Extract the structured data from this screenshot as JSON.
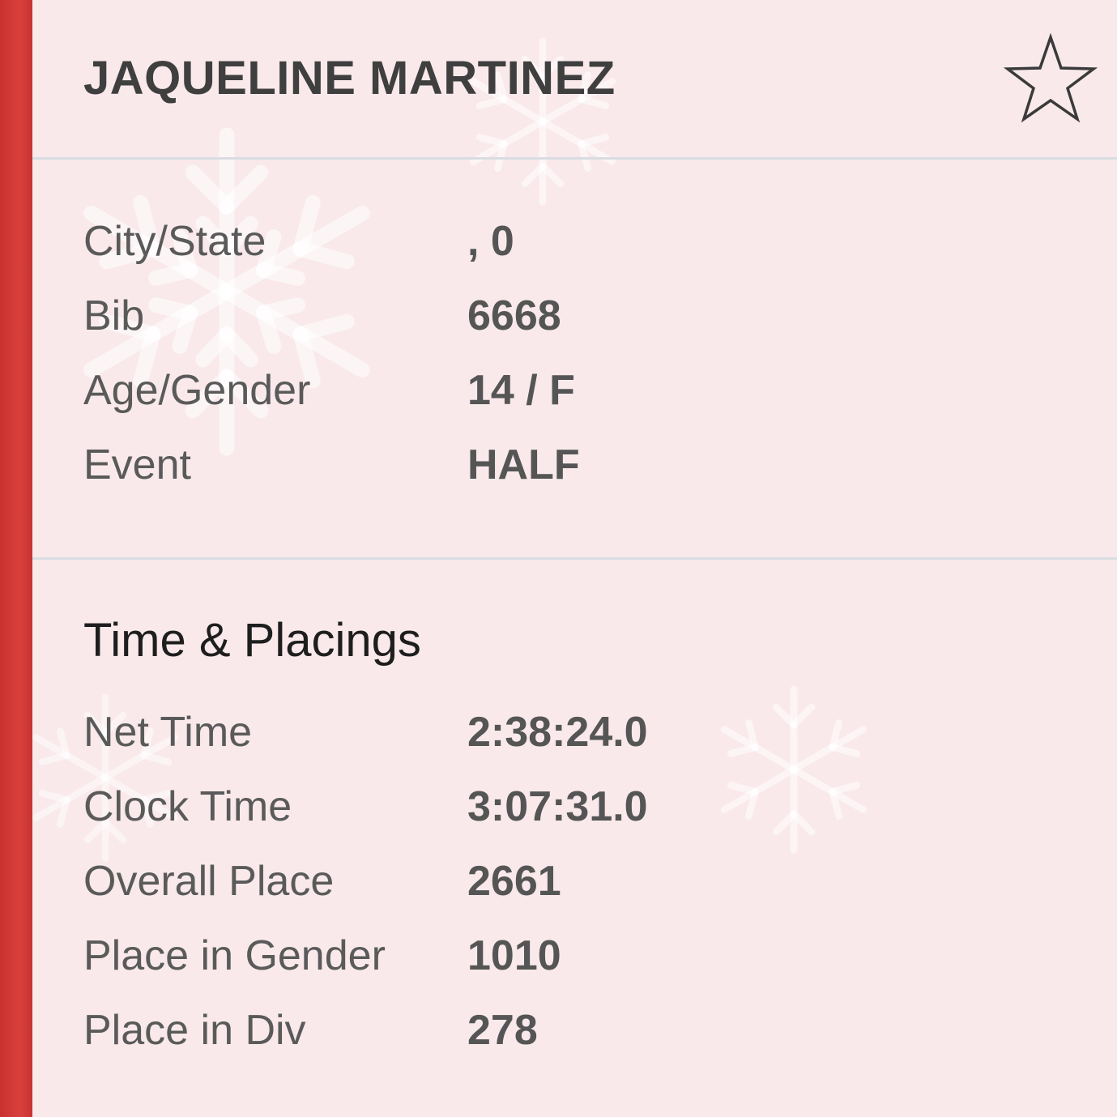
{
  "athlete": {
    "name": "JAQUELINE MARTINEZ"
  },
  "favorite": {
    "icon": "star-outline-icon",
    "starred": false
  },
  "details": [
    {
      "label": "City/State",
      "value": ", 0"
    },
    {
      "label": "Bib",
      "value": "6668"
    },
    {
      "label": "Age/Gender",
      "value": "14 / F"
    },
    {
      "label": "Event",
      "value": "HALF"
    }
  ],
  "results": {
    "title": "Time & Placings",
    "rows": [
      {
        "label": "Net Time",
        "value": "2:38:24.0"
      },
      {
        "label": "Clock Time",
        "value": "3:07:31.0"
      },
      {
        "label": "Overall Place",
        "value": "2661"
      },
      {
        "label": "Place in Gender",
        "value": "1010"
      },
      {
        "label": "Place in Div",
        "value": "278"
      }
    ]
  },
  "colors": {
    "accent": "#d23a37",
    "background": "#f9e9eb",
    "divider": "#d9dde2"
  }
}
